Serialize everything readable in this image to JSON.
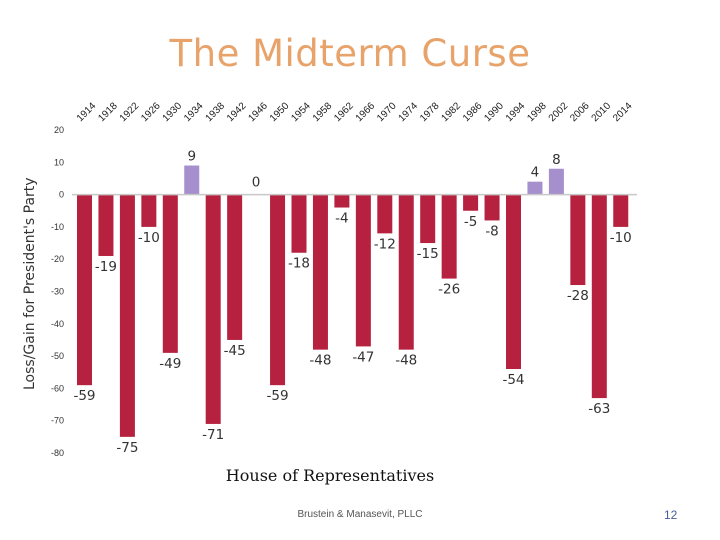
{
  "slide": {
    "title": "The Midterm Curse",
    "footer": "Brustein & Manasevit, PLLC",
    "page_number": "12"
  },
  "colors": {
    "loss": "#b5213e",
    "gain": "#a58fcd",
    "title": "#e8a36b"
  },
  "chart_data": {
    "type": "bar",
    "title": "",
    "xlabel": "House of Representatives",
    "ylabel": "Loss/Gain for President's Party",
    "ylim": [
      -80,
      20
    ],
    "yticks": [
      20,
      10,
      0,
      -10,
      -20,
      -30,
      -40,
      -50,
      -60,
      -70,
      -80
    ],
    "grid": false,
    "categories": [
      "1914",
      "1918",
      "1922",
      "1926",
      "1930",
      "1934",
      "1938",
      "1942",
      "1946",
      "1950",
      "1954",
      "1958",
      "1962",
      "1966",
      "1970",
      "1974",
      "1978",
      "1982",
      "1986",
      "1990",
      "1994",
      "1998",
      "2002",
      "2006",
      "2010",
      "2014"
    ],
    "series": [
      {
        "values": [
          -59,
          -19,
          -75,
          -10,
          -49,
          9,
          -71,
          -45,
          0,
          -59,
          -18,
          -48,
          -4,
          -47,
          -12,
          -48,
          -15,
          -26,
          -5,
          -8,
          -54,
          4,
          8,
          -28,
          -63,
          -10
        ]
      }
    ]
  }
}
